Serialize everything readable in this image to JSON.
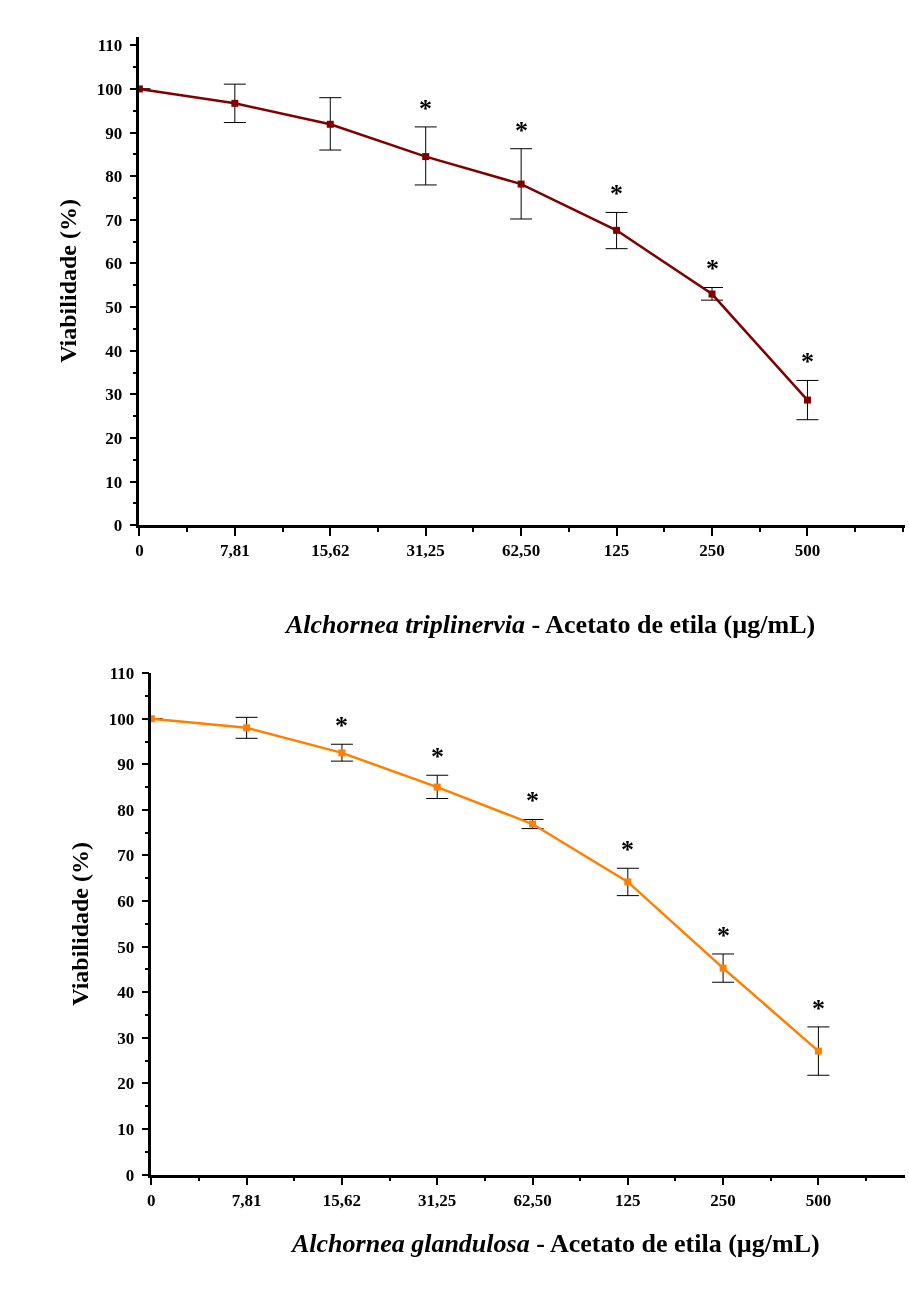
{
  "chart_data": [
    {
      "type": "line",
      "xlabel": "Alchornea triplinervia - Acetato de etila (µg/mL)",
      "ylabel": "Viabilidade (%)",
      "categories": [
        "0",
        "7,81",
        "15,62",
        "31,25",
        "62,50",
        "125",
        "250",
        "500"
      ],
      "series": [
        {
          "color": "#800000",
          "values": [
            100,
            96.7,
            91.9,
            84.5,
            78.2,
            67.6,
            53,
            28.7
          ],
          "errors": [
            null,
            [
              92.3,
              101.1
            ],
            [
              86,
              98
            ],
            [
              78,
              91.3
            ],
            [
              70.2,
              86.3
            ],
            [
              63.4,
              71.7
            ],
            [
              51.6,
              54.5
            ],
            [
              24.2,
              33.2
            ]
          ]
        }
      ],
      "ylim": [
        0,
        112
      ],
      "yticks": [
        0,
        10,
        20,
        30,
        40,
        50,
        60,
        70,
        80,
        90,
        100,
        110
      ],
      "marker": "square",
      "line_style": "solid",
      "annotations": [
        {
          "text": "*",
          "x": "31,25",
          "y": 91.3
        },
        {
          "text": "*",
          "x": "62,50",
          "y": 86.3
        },
        {
          "text": "*",
          "x": "125",
          "y": 71.7
        },
        {
          "text": "*",
          "x": "250",
          "y": 54.5
        },
        {
          "text": "*",
          "x": "500",
          "y": 33.2
        }
      ]
    },
    {
      "type": "line",
      "xlabel": "Alchornea glandulosa - Acetato de etila (µg/mL)",
      "ylabel": "Viabilidade (%)",
      "categories": [
        "0",
        "7,81",
        "15,62",
        "31,25",
        "62,50",
        "125",
        "250",
        "500"
      ],
      "series": [
        {
          "color": "#ff7f00",
          "values": [
            100,
            98,
            92.5,
            85,
            76.9,
            64.2,
            45.3,
            27.1
          ],
          "errors": [
            null,
            [
              95.7,
              100.3
            ],
            [
              90.7,
              94.4
            ],
            [
              82.5,
              87.6
            ],
            [
              75.9,
              77.9
            ],
            [
              61.2,
              67.2
            ],
            [
              42.2,
              48.4
            ],
            [
              21.8,
              32.4
            ]
          ]
        }
      ],
      "ylim": [
        0,
        110
      ],
      "yticks": [
        0,
        10,
        20,
        30,
        40,
        50,
        60,
        70,
        80,
        90,
        100,
        110
      ],
      "marker": "square",
      "line_style": "solid",
      "annotations": [
        {
          "text": "*",
          "x": "15,62",
          "y": 94.4
        },
        {
          "text": "*",
          "x": "31,25",
          "y": 87.6
        },
        {
          "text": "*",
          "x": "62,50",
          "y": 77.9
        },
        {
          "text": "*",
          "x": "125",
          "y": 67.2
        },
        {
          "text": "*",
          "x": "250",
          "y": 48.4
        },
        {
          "text": "*",
          "x": "500",
          "y": 32.4
        }
      ]
    }
  ]
}
